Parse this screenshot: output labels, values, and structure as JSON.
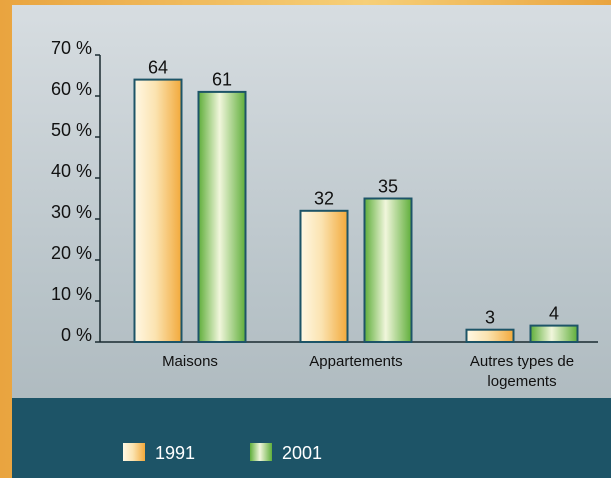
{
  "chart_data": {
    "type": "bar",
    "categories": [
      "Maisons",
      "Appartements",
      "Autres types de logements"
    ],
    "series": [
      {
        "name": "1991",
        "color": "#f2a93b",
        "values": [
          64,
          32,
          3
        ]
      },
      {
        "name": "2001",
        "color": "#5fae3a",
        "values": [
          61,
          35,
          4
        ]
      }
    ],
    "ylim": [
      0,
      70
    ],
    "yticks": [
      {
        "value": 0,
        "label": "0 %"
      },
      {
        "value": 10,
        "label": "10 %"
      },
      {
        "value": 20,
        "label": "20 %"
      },
      {
        "value": 30,
        "label": "30 %"
      },
      {
        "value": 40,
        "label": "40 %"
      },
      {
        "value": 50,
        "label": "50 %"
      },
      {
        "value": 60,
        "label": "60 %"
      },
      {
        "value": 70,
        "label": "70 %"
      }
    ],
    "legend": "bottom"
  }
}
